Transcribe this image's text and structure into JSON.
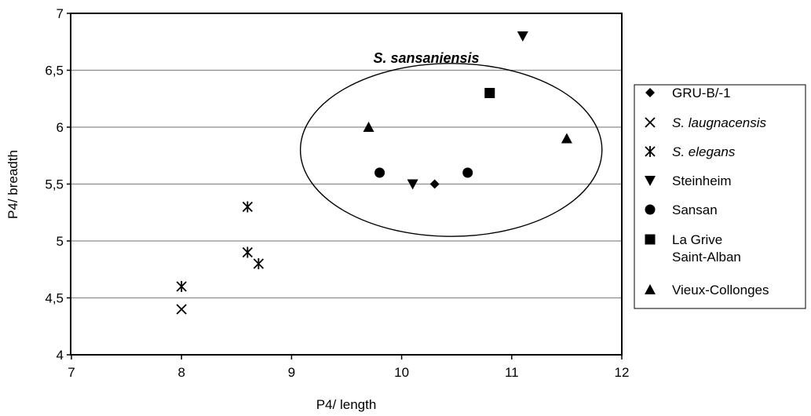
{
  "chart_data": {
    "type": "scatter",
    "title": "",
    "xlabel": "P4/ length",
    "ylabel": "P4/ breadth",
    "xlim": [
      7,
      12
    ],
    "ylim": [
      4,
      7
    ],
    "x_ticks": [
      "7",
      "8",
      "9",
      "10",
      "11",
      "12"
    ],
    "y_ticks": [
      "4",
      "4,5",
      "5",
      "5,5",
      "6",
      "6,5",
      "7"
    ],
    "grid": "horizontal",
    "legend_position": "right",
    "annotation": {
      "text": "S. sansaniensis",
      "ellipse": {
        "center": [
          10.45,
          5.8
        ],
        "x_radius": 1.37,
        "y_radius": 0.76
      }
    },
    "series": [
      {
        "name": "GRU-B/-1",
        "marker": "diamond",
        "italic": false,
        "points": [
          [
            10.3,
            5.5
          ]
        ]
      },
      {
        "name": "S. laugnacensis",
        "marker": "cross",
        "italic": true,
        "points": [
          [
            8.0,
            4.4
          ]
        ]
      },
      {
        "name": "S. elegans",
        "marker": "asterisk",
        "italic": true,
        "points": [
          [
            8.0,
            4.6
          ],
          [
            8.6,
            5.3
          ],
          [
            8.6,
            4.9
          ],
          [
            8.7,
            4.8
          ]
        ]
      },
      {
        "name": "Steinheim",
        "marker": "triangle-down",
        "italic": false,
        "points": [
          [
            10.1,
            5.5
          ],
          [
            11.1,
            6.8
          ]
        ]
      },
      {
        "name": "Sansan",
        "marker": "circle",
        "italic": false,
        "points": [
          [
            9.8,
            5.6
          ],
          [
            10.6,
            5.6
          ]
        ]
      },
      {
        "name": [
          "La Grive",
          "Saint-Alban"
        ],
        "marker": "square",
        "italic": false,
        "points": [
          [
            10.8,
            6.3
          ]
        ]
      },
      {
        "name": "Vieux-Collonges",
        "marker": "triangle-up",
        "italic": false,
        "points": [
          [
            9.7,
            6.0
          ],
          [
            11.5,
            5.9
          ]
        ]
      }
    ]
  }
}
